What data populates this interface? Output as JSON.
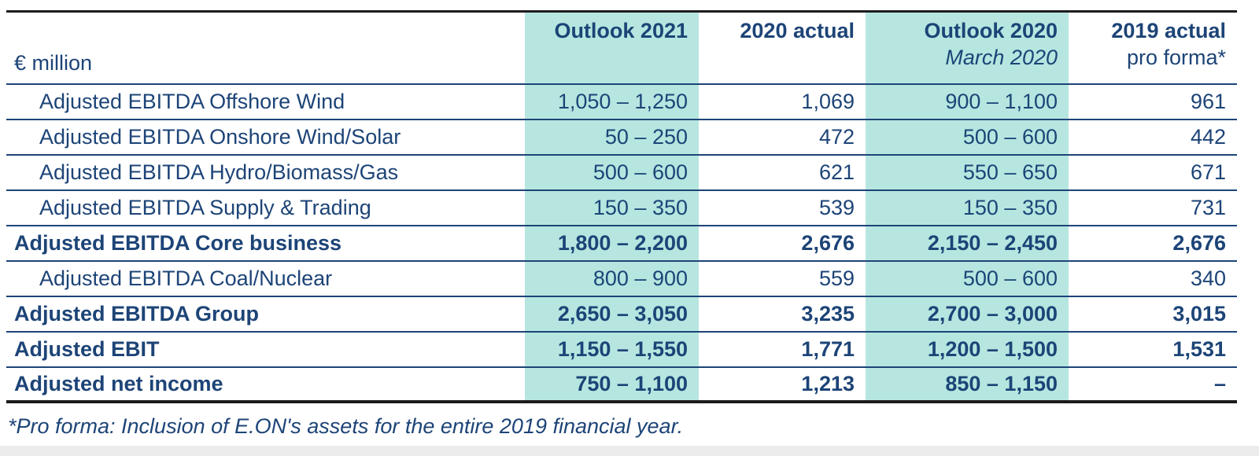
{
  "chart_data": {
    "type": "table",
    "title": "",
    "unit_label": "€ million",
    "columns": [
      "Outlook 2021",
      "2020 actual",
      "Outlook 2020 March 2020",
      "2019 actual pro forma*"
    ],
    "rows": [
      {
        "label": "Adjusted EBITDA Offshore Wind",
        "values": [
          "1,050 – 1,250",
          "1,069",
          "900 – 1,100",
          "961"
        ]
      },
      {
        "label": "Adjusted EBITDA Onshore Wind/Solar",
        "values": [
          "50 – 250",
          "472",
          "500 – 600",
          "442"
        ]
      },
      {
        "label": "Adjusted EBITDA Hydro/Biomass/Gas",
        "values": [
          "500 – 600",
          "621",
          "550 – 650",
          "671"
        ]
      },
      {
        "label": "Adjusted EBITDA Supply & Trading",
        "values": [
          "150 – 350",
          "539",
          "150 – 350",
          "731"
        ]
      },
      {
        "label": "Adjusted EBITDA Core business",
        "values": [
          "1,800 – 2,200",
          "2,676",
          "2,150 – 2,450",
          "2,676"
        ]
      },
      {
        "label": "Adjusted EBITDA Coal/Nuclear",
        "values": [
          "800 – 900",
          "559",
          "500 – 600",
          "340"
        ]
      },
      {
        "label": "Adjusted EBITDA Group",
        "values": [
          "2,650 – 3,050",
          "3,235",
          "2,700 – 3,000",
          "3,015"
        ]
      },
      {
        "label": "Adjusted EBIT",
        "values": [
          "1,150 – 1,550",
          "1,771",
          "1,200 – 1,500",
          "1,531"
        ]
      },
      {
        "label": "Adjusted net income",
        "values": [
          "750 – 1,100",
          "1,213",
          "850 – 1,150",
          "–"
        ]
      }
    ],
    "footnote": "*Pro forma: Inclusion of E.ON's assets for the entire 2019 financial year."
  },
  "table": {
    "unit_label": "€ million",
    "columns": [
      {
        "label": "Outlook 2021",
        "sublabel": ""
      },
      {
        "label": "2020 actual",
        "sublabel": ""
      },
      {
        "label": "Outlook 2020",
        "sublabel": "March 2020"
      },
      {
        "label": "2019 actual",
        "sublabel": "pro forma*"
      }
    ],
    "rows": [
      {
        "label": "Adjusted EBITDA Offshore Wind",
        "v1": "1,050 – 1,250",
        "v2": "1,069",
        "v3": "900 – 1,100",
        "v4": "961"
      },
      {
        "label": "Adjusted EBITDA Onshore Wind/Solar",
        "v1": "50 – 250",
        "v2": "472",
        "v3": "500 – 600",
        "v4": "442"
      },
      {
        "label": "Adjusted EBITDA Hydro/Biomass/Gas",
        "v1": "500 – 600",
        "v2": "621",
        "v3": "550 – 650",
        "v4": "671"
      },
      {
        "label": "Adjusted EBITDA Supply & Trading",
        "v1": "150 – 350",
        "v2": "539",
        "v3": "150 – 350",
        "v4": "731"
      },
      {
        "label": "Adjusted EBITDA Core business",
        "v1": "1,800 – 2,200",
        "v2": "2,676",
        "v3": "2,150 – 2,450",
        "v4": "2,676"
      },
      {
        "label": "Adjusted EBITDA Coal/Nuclear",
        "v1": "800 – 900",
        "v2": "559",
        "v3": "500 – 600",
        "v4": "340"
      },
      {
        "label": "Adjusted EBITDA Group",
        "v1": "2,650 – 3,050",
        "v2": "3,235",
        "v3": "2,700 – 3,000",
        "v4": "3,015"
      },
      {
        "label": "Adjusted EBIT",
        "v1": "1,150 – 1,550",
        "v2": "1,771",
        "v3": "1,200 – 1,500",
        "v4": "1,531"
      },
      {
        "label": "Adjusted net income",
        "v1": "750 – 1,100",
        "v2": "1,213",
        "v3": "850 – 1,150",
        "v4": "–"
      }
    ],
    "footnote": "*Pro forma: Inclusion of E.ON's assets for the entire 2019 financial year.",
    "colors": {
      "text_navy": "#1d4477",
      "highlight_teal": "#b7e6e0",
      "separator_navy": "#1d4477",
      "outer_line_dark": "#1c1c1c"
    }
  }
}
